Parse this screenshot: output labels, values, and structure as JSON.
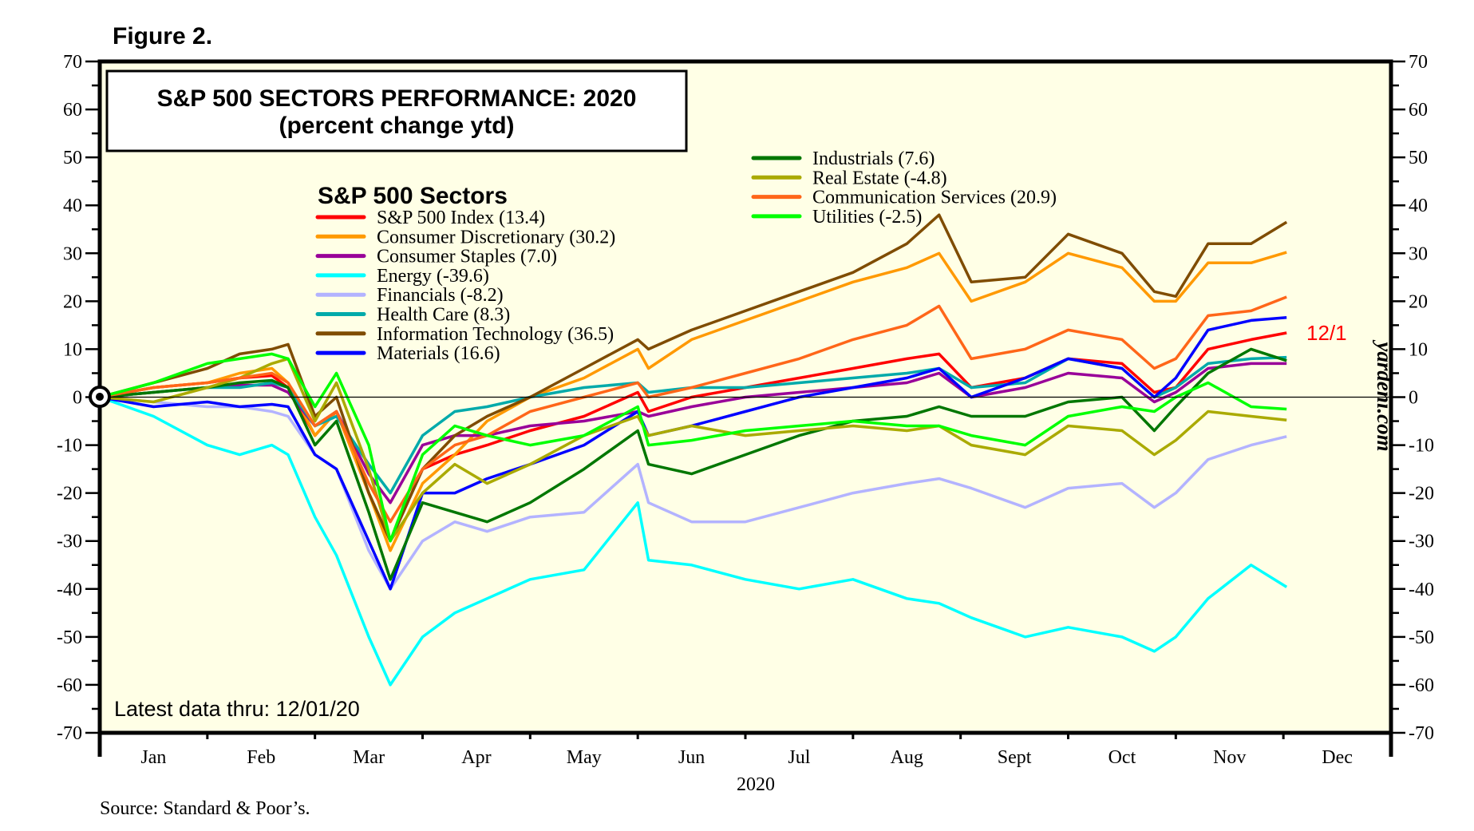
{
  "figure_label": "Figure 2.",
  "source_note": "Source: Standard & Poor’s.",
  "latest_data_note": "Latest data thru: 12/01/20",
  "watermark": "yardeni.com",
  "end_label": "12/1",
  "end_label_color": "#ff0000",
  "chart_data": {
    "type": "line",
    "title": "S&P 500 SECTORS PERFORMANCE: 2020",
    "subtitle": "(percent change ytd)",
    "legend_title": "S&P 500 Sectors",
    "xlabel": "2020",
    "ylabel": "",
    "ylim": [
      -70,
      70
    ],
    "yticks": [
      70,
      60,
      50,
      40,
      30,
      20,
      10,
      0,
      -10,
      -20,
      -30,
      -40,
      -50,
      -60,
      -70
    ],
    "ytick_labels": [
      "70",
      "60",
      "50",
      "40",
      "30",
      "20",
      "10",
      "0",
      "-10",
      "-20",
      "-30",
      "-40",
      "-50",
      "-60",
      "-70"
    ],
    "xlim_months": [
      0,
      12
    ],
    "x_tick_labels": [
      "Jan",
      "Feb",
      "Mar",
      "Apr",
      "May",
      "Jun",
      "Jul",
      "Aug",
      "Sept",
      "Oct",
      "Nov",
      "Dec"
    ],
    "grid": false,
    "zero_line": true,
    "legend_placement": "top-center",
    "x_unit": "months since Jan 1, 2020",
    "x": [
      0,
      0.5,
      1.0,
      1.3,
      1.6,
      1.75,
      2.0,
      2.2,
      2.5,
      2.7,
      3.0,
      3.3,
      3.6,
      4.0,
      4.5,
      5.0,
      5.1,
      5.5,
      6.0,
      6.5,
      7.0,
      7.5,
      7.8,
      8.1,
      8.6,
      9.0,
      9.5,
      9.8,
      10.0,
      10.3,
      10.7,
      11.03
    ],
    "series": [
      {
        "name": "S&P 500 Index (13.4)",
        "color": "#ff0000",
        "values": [
          0,
          2,
          3,
          4,
          4.5,
          2,
          -8,
          -3,
          -20,
          -30,
          -15,
          -12,
          -10,
          -7,
          -4,
          1,
          -3,
          0,
          2,
          4,
          6,
          8,
          9,
          2,
          4,
          8,
          7,
          1,
          2,
          10,
          12,
          13.4
        ]
      },
      {
        "name": "Consumer Discretionary (30.2)",
        "color": "#ff9900",
        "values": [
          0,
          2,
          3,
          5,
          6,
          3,
          -8,
          -3,
          -20,
          -32,
          -18,
          -12,
          -5,
          0,
          4,
          10,
          6,
          12,
          16,
          20,
          24,
          27,
          30,
          20,
          24,
          30,
          27,
          20,
          20,
          28,
          28,
          30.2
        ]
      },
      {
        "name": "Consumer Staples (7.0)",
        "color": "#990099",
        "values": [
          0,
          1,
          2,
          2.5,
          2.5,
          1,
          -6,
          -3,
          -16,
          -22,
          -10,
          -8,
          -8,
          -6,
          -5,
          -3,
          -4,
          -2,
          0,
          1,
          2,
          3,
          5,
          0,
          2,
          5,
          4,
          -1,
          1,
          6,
          7,
          7.0
        ]
      },
      {
        "name": "Energy (-39.6)",
        "color": "#00ffff",
        "values": [
          0,
          -4,
          -10,
          -12,
          -10,
          -12,
          -25,
          -33,
          -50,
          -60,
          -50,
          -45,
          -42,
          -38,
          -36,
          -22,
          -34,
          -35,
          -38,
          -40,
          -38,
          -42,
          -43,
          -46,
          -50,
          -48,
          -50,
          -53,
          -50,
          -42,
          -35,
          -39.6
        ]
      },
      {
        "name": "Financials (-8.2)",
        "color": "#b3b3ff",
        "values": [
          0,
          -1,
          -2,
          -2,
          -3,
          -4,
          -12,
          -15,
          -32,
          -40,
          -30,
          -26,
          -28,
          -25,
          -24,
          -14,
          -22,
          -26,
          -26,
          -23,
          -20,
          -18,
          -17,
          -19,
          -23,
          -19,
          -18,
          -23,
          -20,
          -13,
          -10,
          -8.2
        ]
      },
      {
        "name": "Health Care (8.3)",
        "color": "#00aaaa",
        "values": [
          0,
          1,
          2,
          2,
          3,
          2,
          -6,
          -4,
          -14,
          -20,
          -8,
          -3,
          -2,
          0,
          2,
          3,
          1,
          2,
          2,
          3,
          4,
          5,
          6,
          2,
          3,
          8,
          6,
          0,
          2,
          7,
          8,
          8.3
        ]
      },
      {
        "name": "Information Technology (36.5)",
        "color": "#7f4c00",
        "values": [
          0,
          3,
          6,
          9,
          10,
          11,
          -4,
          0,
          -20,
          -30,
          -15,
          -8,
          -4,
          0,
          6,
          12,
          10,
          14,
          18,
          22,
          26,
          32,
          38,
          24,
          25,
          34,
          30,
          22,
          21,
          32,
          32,
          36.5
        ]
      },
      {
        "name": "Materials (16.6)",
        "color": "#0000ff",
        "values": [
          0,
          -2,
          -1,
          -2,
          -1.5,
          -2,
          -12,
          -15,
          -30,
          -40,
          -20,
          -20,
          -17,
          -14,
          -10,
          -3,
          -8,
          -6,
          -3,
          0,
          2,
          4,
          6,
          0,
          4,
          8,
          6,
          0,
          4,
          14,
          16,
          16.6
        ]
      },
      {
        "name": "Industrials (7.6)",
        "color": "#007700",
        "values": [
          0,
          1,
          2,
          3,
          3.5,
          2,
          -10,
          -5,
          -24,
          -38,
          -22,
          -24,
          -26,
          -22,
          -15,
          -7,
          -14,
          -16,
          -12,
          -8,
          -5,
          -4,
          -2,
          -4,
          -4,
          -1,
          0,
          -7,
          -2,
          5,
          10,
          7.6
        ]
      },
      {
        "name": "Real Estate (-4.8)",
        "color": "#aaaa00",
        "values": [
          0,
          -1,
          2,
          4,
          7,
          8,
          -5,
          3,
          -15,
          -30,
          -20,
          -14,
          -18,
          -14,
          -8,
          -4,
          -8,
          -6,
          -8,
          -7,
          -6,
          -7,
          -6,
          -10,
          -12,
          -6,
          -7,
          -12,
          -9,
          -3,
          -4,
          -4.8
        ]
      },
      {
        "name": "Communication Services (20.9)",
        "color": "#ff6619",
        "values": [
          0,
          2,
          3,
          4,
          5,
          3,
          -6,
          -3,
          -18,
          -26,
          -15,
          -10,
          -8,
          -3,
          0,
          3,
          0,
          2,
          5,
          8,
          12,
          15,
          19,
          8,
          10,
          14,
          12,
          6,
          8,
          17,
          18,
          20.9
        ]
      },
      {
        "name": "Utilities (-2.5)",
        "color": "#00ff00",
        "values": [
          0,
          3,
          7,
          8,
          9,
          8,
          -2,
          5,
          -10,
          -30,
          -12,
          -6,
          -8,
          -10,
          -8,
          -2,
          -10,
          -9,
          -7,
          -6,
          -5,
          -6,
          -6,
          -8,
          -10,
          -4,
          -2,
          -3,
          0,
          3,
          -2,
          -2.5
        ]
      }
    ]
  }
}
